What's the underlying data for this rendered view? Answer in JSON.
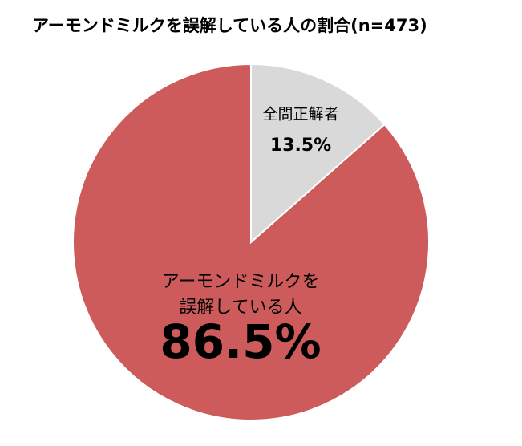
{
  "chart_data": {
    "type": "pie",
    "title": "アーモンドミルクを誤解している人の割合(n=473)",
    "categories": [
      [
        "全問正解者"
      ],
      [
        "アーモンドミルクを",
        "誤解している人"
      ]
    ],
    "values": [
      13.5,
      86.5
    ],
    "value_labels": [
      "13.5%",
      "86.5%"
    ],
    "colors": [
      "#d9d9d9",
      "#cd5b5b"
    ]
  }
}
